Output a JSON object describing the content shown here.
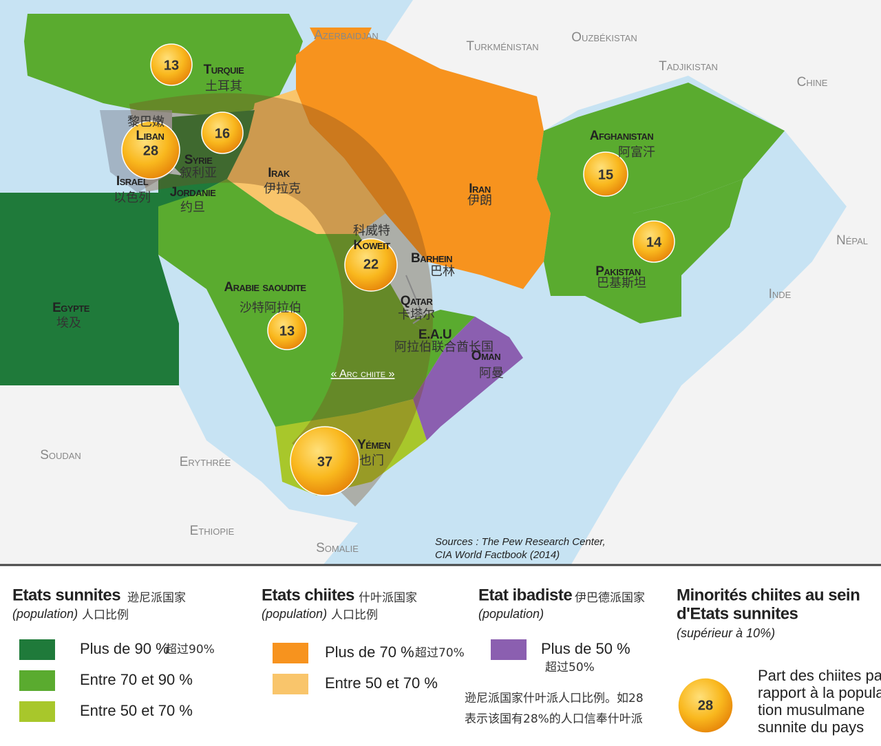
{
  "map": {
    "countries": [
      {
        "name": "Turquie",
        "name_zh": "土耳其",
        "share": 13
      },
      {
        "name": "Liban",
        "name_zh": "黎巴嫩",
        "share": 28
      },
      {
        "name": "Syrie",
        "name_zh": "叙利亚",
        "share": 16
      },
      {
        "name": "Israel",
        "name_zh": "以色列"
      },
      {
        "name": "Jordanie",
        "name_zh": "约旦"
      },
      {
        "name": "Irak",
        "name_zh": "伊拉克"
      },
      {
        "name": "Iran",
        "name_zh": "伊朗"
      },
      {
        "name": "Koweit",
        "name_zh": "科威特",
        "share": 22
      },
      {
        "name": "Barhein",
        "name_zh": "巴林"
      },
      {
        "name": "Qatar",
        "name_zh": "卡塔尔"
      },
      {
        "name": "E.A.U",
        "name_zh": "阿拉伯联合酋长国"
      },
      {
        "name": "Oman",
        "name_zh": "阿曼"
      },
      {
        "name": "Arabie saoudite",
        "name_zh": "沙特阿拉伯",
        "share": 13
      },
      {
        "name": "Yémen",
        "name_zh": "也门",
        "share": 37
      },
      {
        "name": "Egypte",
        "name_zh": "埃及"
      },
      {
        "name": "Afghanistan",
        "name_zh": "阿富汗",
        "share": 15
      },
      {
        "name": "Pakistan",
        "name_zh": "巴基斯坦",
        "share": 14
      }
    ],
    "other_labels": [
      "Azerbaidjan",
      "Turkménistan",
      "Ouzbékistan",
      "Tadjikistan",
      "Chine",
      "Népal",
      "Inde",
      "Soudan",
      "Erythrée",
      "Ethiopie",
      "Somalie"
    ],
    "arc_label": "« Arc chiite »",
    "sources": [
      "Sources : The Pew Research Center,",
      "CIA World Factbook (2014)"
    ]
  },
  "legend": {
    "sunni": {
      "title": "Etats sunnites",
      "title_zh": "逊尼派国家",
      "subtitle": "(population)",
      "subtitle_zh": "人口比例",
      "items": [
        {
          "label": "Plus de 90 %",
          "label_zh": "超过90%",
          "color": "#1f7a3a"
        },
        {
          "label": "Entre 70 et 90 %",
          "color": "#5aab2f"
        },
        {
          "label": "Entre 50 et 70 %",
          "color": "#a8c72b"
        }
      ]
    },
    "shia": {
      "title": "Etats chiites",
      "title_zh": "什叶派国家",
      "subtitle": "(population)",
      "subtitle_zh": "人口比例",
      "items": [
        {
          "label": "Plus de 70 %",
          "label_zh": "超过70%",
          "color": "#f7931e"
        },
        {
          "label": "Entre 50 et 70 %",
          "color": "#f9c56b"
        }
      ]
    },
    "ibadi": {
      "title": "Etat ibadiste",
      "title_zh": "伊巴德派国家",
      "subtitle": "(population)",
      "items": [
        {
          "label": "Plus de 50 %",
          "label_zh": "超过50%",
          "color": "#8b5fb0"
        }
      ]
    },
    "minorities": {
      "title": [
        "Minorités chiites au sein",
        "d'Etats sunnites"
      ],
      "subtitle": "(supérieur à 10%)",
      "example": 28,
      "description": [
        "Part des chiites par",
        "rapport à la popula-",
        "tion musulmane",
        "sunnite du pays"
      ],
      "note_zh": [
        "逊尼派国家什叶派人口比例。如28",
        "表示该国有28%的人口信奉什叶派"
      ]
    }
  }
}
